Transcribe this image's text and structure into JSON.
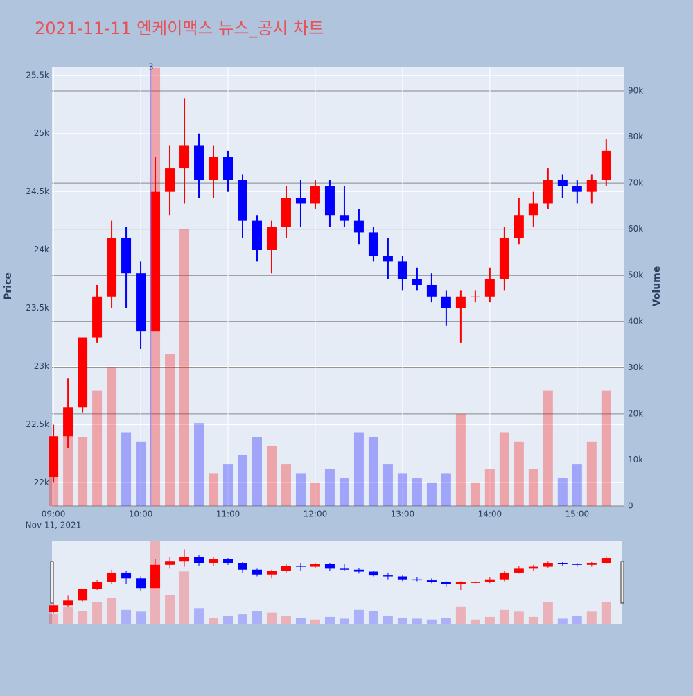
{
  "chart_data": {
    "type": "candlestick",
    "title": "2021-11-11 엔케이맥스 뉴스_공시 차트",
    "y_title": "Price",
    "y2_title": "Volume",
    "x_date_label": "Nov 11, 2021",
    "increasing_color": "#ff0000",
    "decreasing_color": "#0000ff",
    "xlim": [
      "08:59",
      "15:32"
    ],
    "xticks": [
      "09:00",
      "10:00",
      "11:00",
      "12:00",
      "13:00",
      "14:00",
      "15:00"
    ],
    "ylim": [
      21800,
      25570
    ],
    "yticks": [
      {
        "value": 22000,
        "label": "22k"
      },
      {
        "value": 22500,
        "label": "22.5k"
      },
      {
        "value": 23000,
        "label": "23k"
      },
      {
        "value": 23500,
        "label": "23.5k"
      },
      {
        "value": 24000,
        "label": "24k"
      },
      {
        "value": 24500,
        "label": "24.5k"
      },
      {
        "value": 25000,
        "label": "25k"
      },
      {
        "value": 25500,
        "label": "25.5k"
      }
    ],
    "y2lim": [
      0,
      95100
    ],
    "y2ticks": [
      0,
      {
        "value": 10000,
        "label": "10k"
      },
      {
        "value": 20000,
        "label": "20k"
      },
      {
        "value": 30000,
        "label": "30k"
      },
      {
        "value": 40000,
        "label": "40k"
      },
      {
        "value": 50000,
        "label": "50k"
      },
      {
        "value": 60000,
        "label": "60k"
      },
      {
        "value": 70000,
        "label": "70k"
      },
      {
        "value": 80000,
        "label": "80k"
      },
      {
        "value": 90000,
        "label": "90k"
      }
    ],
    "annotations": [
      {
        "x": "10:07",
        "text": "3"
      }
    ],
    "x": [
      "09:00",
      "09:10",
      "09:20",
      "09:30",
      "09:40",
      "09:50",
      "10:00",
      "10:10",
      "10:20",
      "10:30",
      "10:40",
      "10:50",
      "11:00",
      "11:10",
      "11:20",
      "11:30",
      "11:40",
      "11:50",
      "12:00",
      "12:10",
      "12:20",
      "12:30",
      "12:40",
      "12:50",
      "13:00",
      "13:10",
      "13:20",
      "13:30",
      "13:40",
      "13:50",
      "14:00",
      "14:10",
      "14:20",
      "14:30",
      "14:40",
      "14:50",
      "15:00",
      "15:10",
      "15:20"
    ],
    "open": [
      22050,
      22400,
      22650,
      23250,
      23600,
      24100,
      23800,
      23300,
      24500,
      24700,
      24900,
      24600,
      24800,
      24600,
      24250,
      24000,
      24200,
      24450,
      24400,
      24550,
      24300,
      24250,
      24150,
      23950,
      23900,
      23750,
      23700,
      23600,
      23500,
      23600,
      23600,
      23750,
      24100,
      24300,
      24400,
      24600,
      24550,
      24500,
      24600
    ],
    "high": [
      22500,
      22900,
      23250,
      23700,
      24250,
      24200,
      23900,
      24800,
      24900,
      25300,
      25000,
      24900,
      24850,
      24650,
      24300,
      24250,
      24550,
      24600,
      24600,
      24600,
      24550,
      24350,
      24200,
      24100,
      23950,
      23850,
      23800,
      23650,
      23650,
      23650,
      23850,
      24200,
      24450,
      24500,
      24700,
      24650,
      24600,
      24650,
      24950
    ],
    "low": [
      22000,
      22300,
      22600,
      23200,
      23500,
      23500,
      23150,
      23300,
      24300,
      24400,
      24450,
      24450,
      24500,
      24100,
      23900,
      23800,
      24100,
      24200,
      24350,
      24200,
      24200,
      24050,
      23900,
      23750,
      23650,
      23650,
      23550,
      23350,
      23200,
      23550,
      23550,
      23650,
      24050,
      24200,
      24350,
      24450,
      24400,
      24400,
      24550
    ],
    "close": [
      22400,
      22650,
      23250,
      23600,
      24100,
      23800,
      23300,
      24500,
      24700,
      24900,
      24600,
      24800,
      24600,
      24250,
      24000,
      24200,
      24450,
      24400,
      24550,
      24300,
      24250,
      24150,
      23950,
      23900,
      23750,
      23700,
      23600,
      23500,
      23600,
      23600,
      23750,
      24100,
      24300,
      24400,
      24600,
      24550,
      24500,
      24600,
      24850
    ],
    "volume": [
      12000,
      20000,
      15000,
      25000,
      30000,
      16000,
      14000,
      95000,
      33000,
      60000,
      18000,
      7000,
      9000,
      11000,
      15000,
      13000,
      9000,
      7000,
      5000,
      8000,
      6000,
      16000,
      15000,
      9000,
      7000,
      6000,
      5000,
      7000,
      20000,
      5000,
      8000,
      16000,
      14000,
      8000,
      25000,
      6000,
      9000,
      14000,
      25000
    ]
  }
}
